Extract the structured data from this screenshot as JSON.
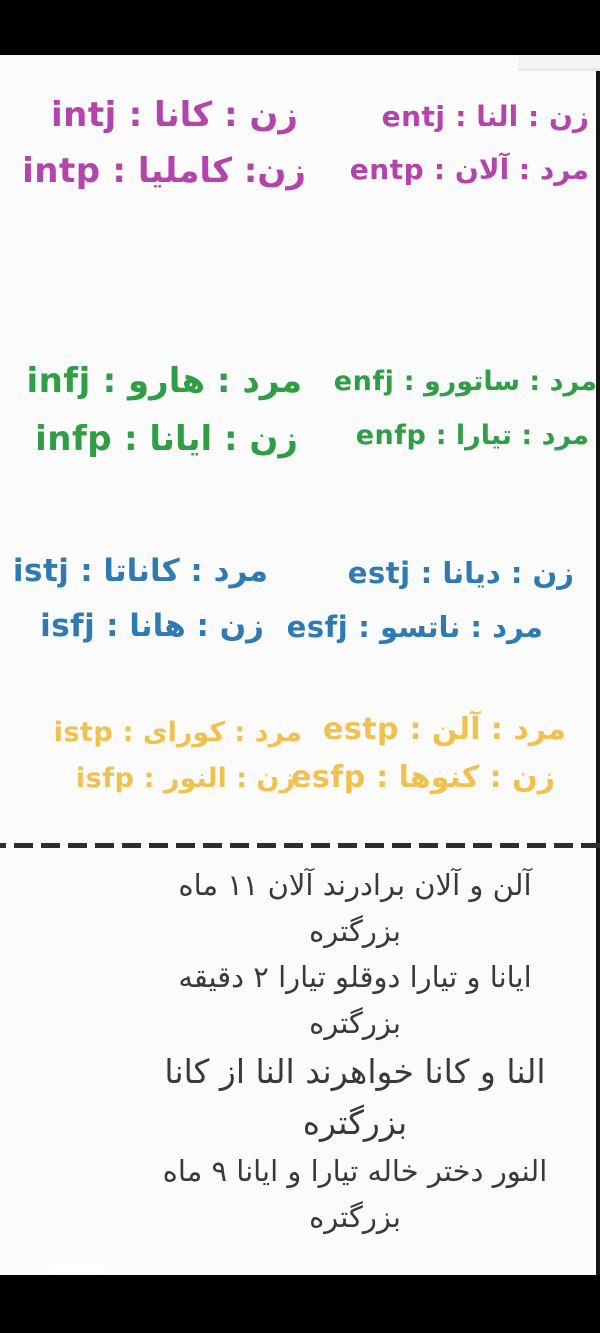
{
  "page": {
    "background": "#fcfbfc",
    "letterbox_color": "#000000",
    "language": "fa"
  },
  "colors": {
    "purple_group": "#b344ab",
    "green_group": "#2f9e45",
    "blue_group": "#2e7ab3",
    "yellow_group": "#f0c14f",
    "notes_text": "#39383b",
    "divider": "#2d2d2d"
  },
  "mbti_groups": [
    {
      "group": "purple",
      "color": "#b344ab",
      "entries": [
        {
          "code": "entj",
          "gender": "زن",
          "name": "النا",
          "display": "زن : النا : entj"
        },
        {
          "code": "intj",
          "gender": "زن",
          "name": "کانا",
          "display": "زن : کانا : intj"
        },
        {
          "code": "entp",
          "gender": "مرد",
          "name": "آلان",
          "display": "مرد : آلان : entp"
        },
        {
          "code": "intp",
          "gender": "زن",
          "name": "کاملیا",
          "display": "زن: کاملیا : intp"
        }
      ]
    },
    {
      "group": "green",
      "color": "#2f9e45",
      "entries": [
        {
          "code": "enfj",
          "gender": "مرد",
          "name": "ساتورو",
          "display": "مرد : ساتورو : enfj"
        },
        {
          "code": "infj",
          "gender": "مرد",
          "name": "هارو",
          "display": "مرد : هارو : infj"
        },
        {
          "code": "enfp",
          "gender": "مرد",
          "name": "تیارا",
          "display": "مرد : تیارا : enfp"
        },
        {
          "code": "infp",
          "gender": "زن",
          "name": "ایانا",
          "display": "زن : ایانا : infp"
        }
      ]
    },
    {
      "group": "blue",
      "color": "#2e7ab3",
      "entries": [
        {
          "code": "estj",
          "gender": "زن",
          "name": "دیانا",
          "display": "زن : دیانا : estj"
        },
        {
          "code": "istj",
          "gender": "مرد",
          "name": "کاناتا",
          "display": "مرد : کاناتا : istj"
        },
        {
          "code": "esfj",
          "gender": "مرد",
          "name": "ناتسو",
          "display": "مرد : ناتسو : esfj"
        },
        {
          "code": "isfj",
          "gender": "زن",
          "name": "هانا",
          "display": "زن : هانا : isfj"
        }
      ]
    },
    {
      "group": "yellow",
      "color": "#f0c14f",
      "entries": [
        {
          "code": "estp",
          "gender": "مرد",
          "name": "آلن",
          "display": "مرد : آلن : estp"
        },
        {
          "code": "istp",
          "gender": "مرد",
          "name": "کورای",
          "display": "مرد : کورای : istp"
        },
        {
          "code": "esfp",
          "gender": "زن",
          "name": "کنوها",
          "display": "زن : کنوها : esfp"
        },
        {
          "code": "isfp",
          "gender": "زن",
          "name": "النور",
          "display": "زن : النور : isfp"
        }
      ]
    }
  ],
  "notes": {
    "lines": [
      "آلن و آلان برادرند آلان ۱۱ ماه",
      "بزرگتره",
      "ایانا و تیارا دوقلو تیارا ۲ دقیقه",
      "بزرگتره",
      "النا و کانا خواهرند النا از کانا",
      "بزرگتره",
      "النور دختر خاله تیارا و ایانا ۹ ماه",
      "بزرگتره"
    ]
  }
}
